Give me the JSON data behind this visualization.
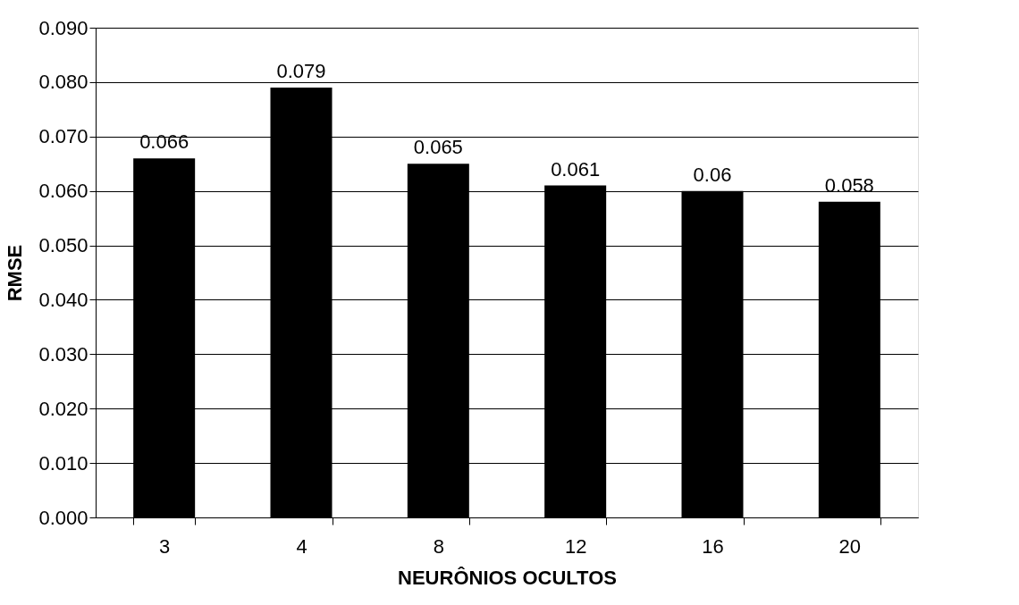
{
  "chart_data": {
    "type": "bar",
    "xlabel": "NEURÔNIOS OCULTOS",
    "ylabel": "RMSE",
    "categories": [
      "3",
      "4",
      "8",
      "12",
      "16",
      "20"
    ],
    "series": [
      {
        "color": "#000000",
        "values": [
          0.066,
          0.079,
          0.065,
          0.061,
          0.06,
          0.058
        ]
      }
    ],
    "ylim": [
      0,
      0.09
    ],
    "yticks": [
      {
        "value": 0,
        "label": "0.000"
      },
      {
        "value": 0.01,
        "label": "0.010"
      },
      {
        "value": 0.02,
        "label": "0.020"
      },
      {
        "value": 0.03,
        "label": "0.030"
      },
      {
        "value": 0.04,
        "label": "0.040"
      },
      {
        "value": 0.05,
        "label": "0.050"
      },
      {
        "value": 0.06,
        "label": "0.060"
      },
      {
        "value": 0.07,
        "label": "0.070"
      },
      {
        "value": 0.08,
        "label": "0.080"
      },
      {
        "value": 0.09,
        "label": "0.090"
      }
    ],
    "grid": "y",
    "data_labels": true,
    "legend": false
  }
}
